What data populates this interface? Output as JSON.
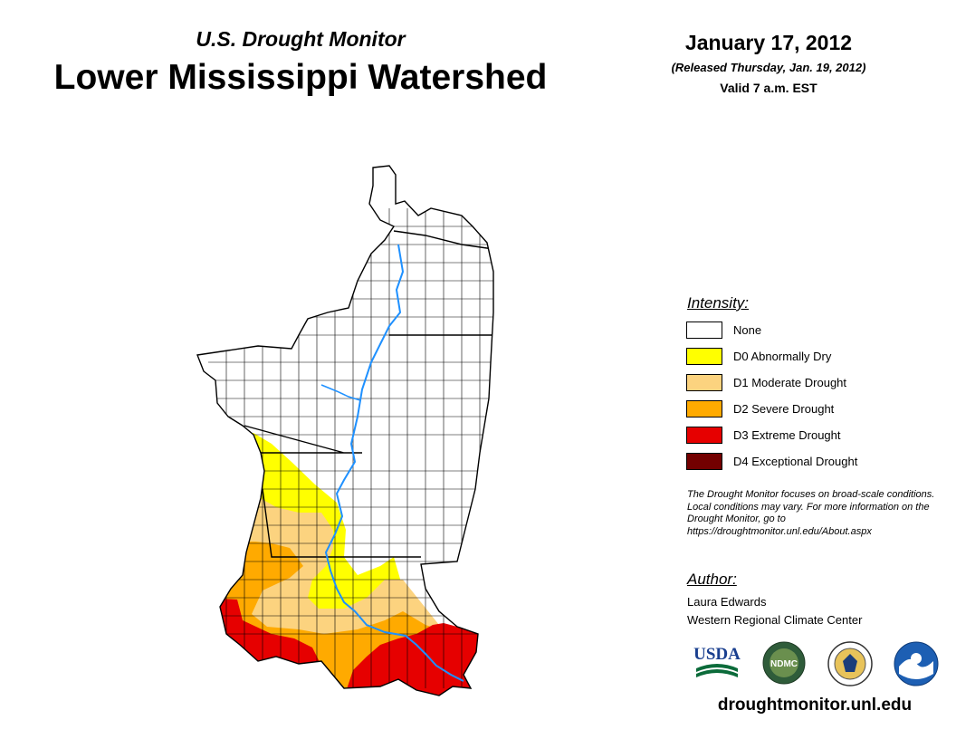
{
  "header": {
    "subtitle": "U.S. Drought Monitor",
    "title": "Lower Mississippi Watershed",
    "date": "January 17, 2012",
    "released": "(Released Thursday, Jan. 19, 2012)",
    "valid": "Valid 7 a.m. EST"
  },
  "legend": {
    "heading": "Intensity:",
    "items": [
      {
        "label": "None",
        "color": "#ffffff"
      },
      {
        "label": "D0 Abnormally Dry",
        "color": "#ffff00"
      },
      {
        "label": "D1 Moderate Drought",
        "color": "#fcd37f"
      },
      {
        "label": "D2 Severe Drought",
        "color": "#ffaa00"
      },
      {
        "label": "D3 Extreme Drought",
        "color": "#e60000"
      },
      {
        "label": "D4 Exceptional Drought",
        "color": "#730000"
      }
    ]
  },
  "note": "The Drought Monitor focuses on broad-scale conditions. Local conditions may vary. For more information on the Drought Monitor, go to https://droughtmonitor.unl.edu/About.aspx",
  "author": {
    "heading": "Author:",
    "name": "Laura Edwards",
    "organization": "Western Regional Climate Center"
  },
  "logos": {
    "usda": "USDA",
    "ndmc": "NDMC",
    "noaa": "NOAA"
  },
  "footer": {
    "url": "droughtmonitor.unl.edu"
  },
  "map": {
    "river_color": "#1e90ff",
    "border_color": "#000000"
  }
}
